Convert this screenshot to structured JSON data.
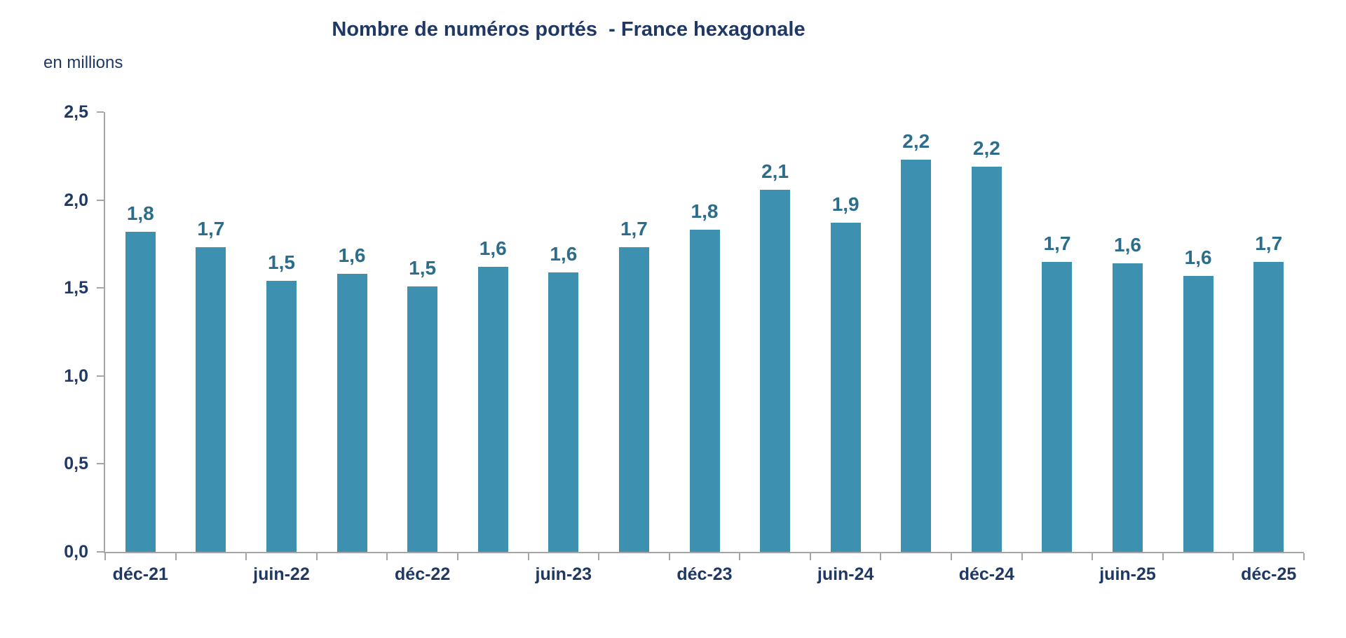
{
  "page": {
    "background": "#ffffff"
  },
  "chart_data": {
    "type": "bar",
    "title": "Nombre de numéros portés  - France hexagonale",
    "units_label": "en millions",
    "xlabel": "",
    "ylabel": "",
    "ylim": [
      0,
      2.5
    ],
    "grid": false,
    "legend": false,
    "bar_count": 17,
    "values": [
      1.82,
      1.73,
      1.54,
      1.58,
      1.51,
      1.62,
      1.59,
      1.73,
      1.83,
      2.06,
      1.87,
      2.23,
      2.19,
      1.65,
      1.64,
      1.57,
      1.65
    ],
    "bar_labels": [
      "1,8",
      "1,7",
      "1,5",
      "1,6",
      "1,5",
      "1,6",
      "1,6",
      "1,7",
      "1,8",
      "2,1",
      "1,9",
      "2,2",
      "2,2",
      "1,7",
      "1,6",
      "1,6",
      "1,7"
    ],
    "x_tick_labels": [
      "déc-21",
      "juin-22",
      "déc-22",
      "juin-23",
      "déc-23",
      "juin-24",
      "déc-24",
      "juin-25",
      "déc-25"
    ],
    "x_label_every": 2,
    "y_tick_labels": [
      "0,0",
      "0,5",
      "1,0",
      "1,5",
      "2,0",
      "2,5"
    ],
    "y_tick_values": [
      0,
      0.5,
      1,
      1.5,
      2,
      2.5
    ],
    "colors": {
      "bar_fill": "#3e90b0",
      "bar_label": "#2d6d8c",
      "title_text": "#1f3864",
      "axis_text": "#1f3864",
      "axis_line": "#a6a6a6"
    }
  }
}
